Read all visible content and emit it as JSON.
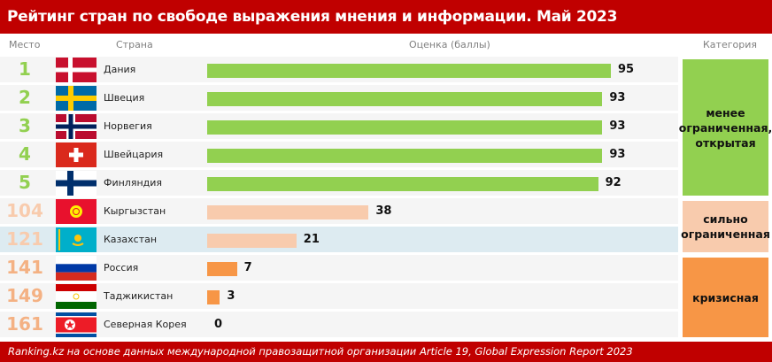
{
  "title": "Рейтинг стран по свободе выражения мнения и информации. Май 2023",
  "headers": {
    "rank": "Место",
    "country": "Страна",
    "score": "Оценка (баллы)",
    "category": "Категория"
  },
  "rows": [
    {
      "rank": "1",
      "country": "Дания",
      "score": 95,
      "flag": "denmark-flag",
      "group": 0
    },
    {
      "rank": "2",
      "country": "Швеция",
      "score": 93,
      "flag": "sweden-flag",
      "group": 0
    },
    {
      "rank": "3",
      "country": "Норвегия",
      "score": 93,
      "flag": "norway-flag",
      "group": 0
    },
    {
      "rank": "4",
      "country": "Швейцария",
      "score": 93,
      "flag": "switzerland-flag",
      "group": 0
    },
    {
      "rank": "5",
      "country": "Финляндия",
      "score": 92,
      "flag": "finland-flag",
      "group": 0
    },
    {
      "rank": "104",
      "country": "Кыргызстан",
      "score": 38,
      "flag": "kyrgyzstan-flag",
      "group": 1
    },
    {
      "rank": "121",
      "country": "Казахстан",
      "score": 21,
      "flag": "kazakhstan-flag",
      "group": 1,
      "highlight": true
    },
    {
      "rank": "141",
      "country": "Россия",
      "score": 7,
      "flag": "russia-flag",
      "group": 2
    },
    {
      "rank": "149",
      "country": "Таджикистан",
      "score": 3,
      "flag": "tajikistan-flag",
      "group": 2
    },
    {
      "rank": "161",
      "country": "Северная Корея",
      "score": 0,
      "flag": "north-korea-flag",
      "group": 2
    }
  ],
  "categories": [
    {
      "label": "менее ограниченная, открытая",
      "color": "#92d050",
      "rank_color": "#92d050"
    },
    {
      "label": "сильно ограниченная",
      "color": "#f8cbad",
      "rank_color": "#f8cbad"
    },
    {
      "label": "кризисная",
      "color": "#f79646",
      "rank_color": "#f4b183"
    }
  ],
  "colors": {
    "header": "#c00000",
    "row_bg": "#f5f5f5",
    "highlight_bg": "#ddebf1"
  },
  "footer": "Ranking.kz на основе данных международной правозащитной организации Article 19, Global Expression Report 2023"
}
